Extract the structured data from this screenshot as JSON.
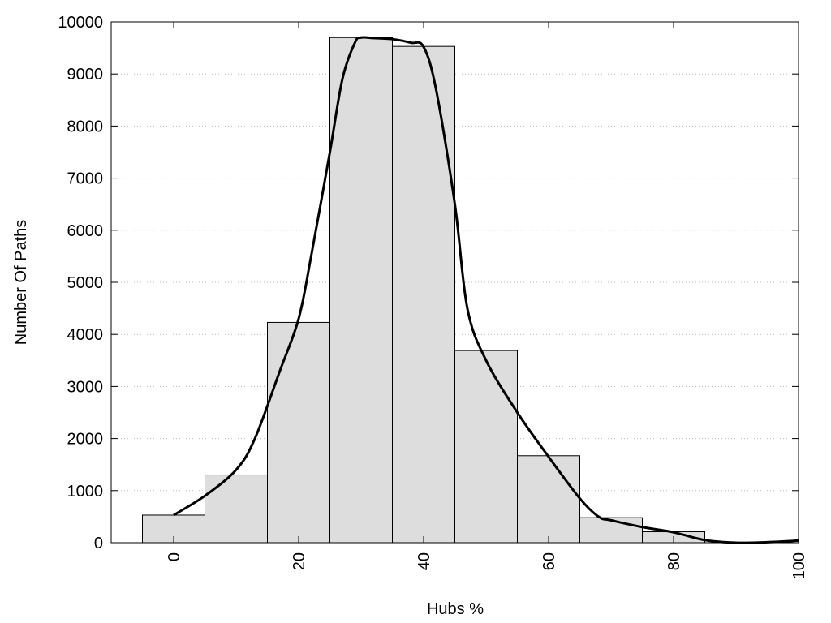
{
  "chart_data": {
    "type": "bar",
    "title": "",
    "xlabel": "Hubs %",
    "ylabel": "Number Of Paths",
    "xlim": [
      -10,
      100
    ],
    "ylim": [
      0,
      10000
    ],
    "x_ticks": [
      "0",
      "20",
      "40",
      "60",
      "80",
      "100"
    ],
    "y_ticks": [
      "0",
      "1000",
      "2000",
      "3000",
      "4000",
      "5000",
      "6000",
      "7000",
      "8000",
      "9000",
      "10000"
    ],
    "grid": "horizontal dotted",
    "bar_width": 10,
    "bars": [
      {
        "x": 0,
        "value": 530
      },
      {
        "x": 10,
        "value": 1300
      },
      {
        "x": 20,
        "value": 4230
      },
      {
        "x": 30,
        "value": 9700
      },
      {
        "x": 40,
        "value": 9530
      },
      {
        "x": 50,
        "value": 3690
      },
      {
        "x": 60,
        "value": 1670
      },
      {
        "x": 70,
        "value": 480
      },
      {
        "x": 80,
        "value": 210
      }
    ],
    "curve": {
      "x": [
        0,
        5,
        10,
        13,
        17,
        20,
        22,
        25,
        27,
        29,
        30,
        32,
        35,
        38,
        40,
        42,
        45,
        47,
        50,
        55,
        60,
        65,
        68,
        70,
        75,
        80,
        85,
        90,
        95,
        100
      ],
      "y": [
        530,
        900,
        1400,
        2000,
        3300,
        4300,
        5500,
        7500,
        8900,
        9600,
        9700,
        9690,
        9670,
        9600,
        9520,
        8700,
        6500,
        4500,
        3500,
        2500,
        1650,
        850,
        500,
        430,
        300,
        200,
        50,
        0,
        10,
        40
      ]
    },
    "colors": {
      "bar_fill": "#dddddd",
      "bar_stroke": "#000000",
      "curve": "#000000",
      "grid": "#bbbbbb"
    }
  }
}
